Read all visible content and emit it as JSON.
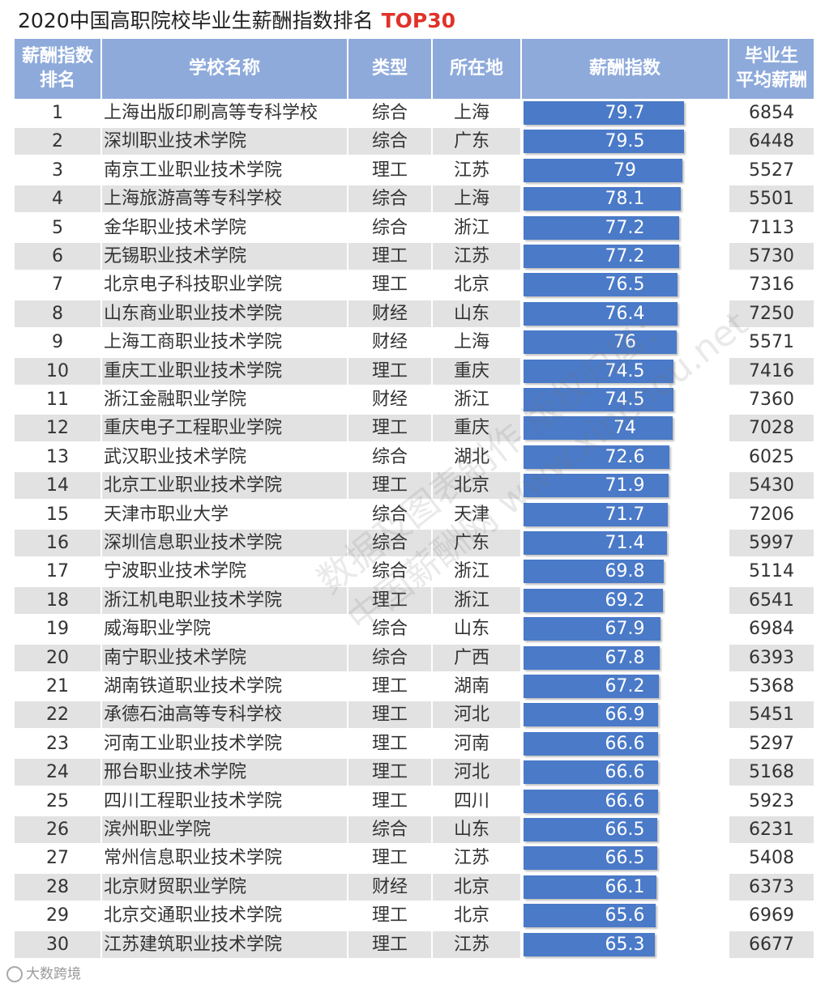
{
  "title": "2020中国高职院校毕业生薪酬指数排名",
  "title_highlight": "TOP30",
  "colors": {
    "header_bg": "#8eaadb",
    "header_text": "#ffffff",
    "bar": "#4a7ac8",
    "row_alt": "#e2e2e2",
    "highlight": "#e0322a"
  },
  "watermark": [
    "数据及图表制作 版权归属：",
    "中国薪酬网 www.xinchou.net"
  ],
  "footer_logo": "大数跨境",
  "chart_data": {
    "type": "table",
    "title": "2020中国高职院校毕业生薪酬指数排名 TOP30",
    "columns": [
      "薪酬指数\n排名",
      "学校名称",
      "类型",
      "所在地",
      "薪酬指数",
      "毕业生\n平均薪酬"
    ],
    "index_range": [
      0,
      79.7
    ],
    "rows": [
      {
        "rank": 1,
        "name": "上海出版印刷高等专科学校",
        "type": "综合",
        "location": "上海",
        "index": 79.7,
        "salary": 6854
      },
      {
        "rank": 2,
        "name": "深圳职业技术学院",
        "type": "综合",
        "location": "广东",
        "index": 79.5,
        "salary": 6448
      },
      {
        "rank": 3,
        "name": "南京工业职业技术学院",
        "type": "理工",
        "location": "江苏",
        "index": 79,
        "salary": 5527
      },
      {
        "rank": 4,
        "name": "上海旅游高等专科学校",
        "type": "综合",
        "location": "上海",
        "index": 78.1,
        "salary": 5501
      },
      {
        "rank": 5,
        "name": "金华职业技术学院",
        "type": "综合",
        "location": "浙江",
        "index": 77.2,
        "salary": 7113
      },
      {
        "rank": 6,
        "name": "无锡职业技术学院",
        "type": "理工",
        "location": "江苏",
        "index": 77.2,
        "salary": 5730
      },
      {
        "rank": 7,
        "name": "北京电子科技职业学院",
        "type": "理工",
        "location": "北京",
        "index": 76.5,
        "salary": 7316
      },
      {
        "rank": 8,
        "name": "山东商业职业技术学院",
        "type": "财经",
        "location": "山东",
        "index": 76.4,
        "salary": 7250
      },
      {
        "rank": 9,
        "name": "上海工商职业技术学院",
        "type": "财经",
        "location": "上海",
        "index": 76,
        "salary": 5571
      },
      {
        "rank": 10,
        "name": "重庆工业职业技术学院",
        "type": "理工",
        "location": "重庆",
        "index": 74.5,
        "salary": 7416
      },
      {
        "rank": 11,
        "name": "浙江金融职业学院",
        "type": "财经",
        "location": "浙江",
        "index": 74.5,
        "salary": 7360
      },
      {
        "rank": 12,
        "name": "重庆电子工程职业学院",
        "type": "理工",
        "location": "重庆",
        "index": 74,
        "salary": 7028
      },
      {
        "rank": 13,
        "name": "武汉职业技术学院",
        "type": "综合",
        "location": "湖北",
        "index": 72.6,
        "salary": 6025
      },
      {
        "rank": 14,
        "name": "北京工业职业技术学院",
        "type": "理工",
        "location": "北京",
        "index": 71.9,
        "salary": 5430
      },
      {
        "rank": 15,
        "name": "天津市职业大学",
        "type": "综合",
        "location": "天津",
        "index": 71.7,
        "salary": 7206
      },
      {
        "rank": 16,
        "name": "深圳信息职业技术学院",
        "type": "综合",
        "location": "广东",
        "index": 71.4,
        "salary": 5997
      },
      {
        "rank": 17,
        "name": "宁波职业技术学院",
        "type": "综合",
        "location": "浙江",
        "index": 69.8,
        "salary": 5114
      },
      {
        "rank": 18,
        "name": "浙江机电职业技术学院",
        "type": "理工",
        "location": "浙江",
        "index": 69.2,
        "salary": 6541
      },
      {
        "rank": 19,
        "name": "威海职业学院",
        "type": "综合",
        "location": "山东",
        "index": 67.9,
        "salary": 6984
      },
      {
        "rank": 20,
        "name": "南宁职业技术学院",
        "type": "综合",
        "location": "广西",
        "index": 67.8,
        "salary": 6393
      },
      {
        "rank": 21,
        "name": "湖南铁道职业技术学院",
        "type": "理工",
        "location": "湖南",
        "index": 67.2,
        "salary": 5368
      },
      {
        "rank": 22,
        "name": "承德石油高等专科学校",
        "type": "理工",
        "location": "河北",
        "index": 66.9,
        "salary": 5451
      },
      {
        "rank": 23,
        "name": "河南工业职业技术学院",
        "type": "理工",
        "location": "河南",
        "index": 66.6,
        "salary": 5297
      },
      {
        "rank": 24,
        "name": "邢台职业技术学院",
        "type": "理工",
        "location": "河北",
        "index": 66.6,
        "salary": 5168
      },
      {
        "rank": 25,
        "name": "四川工程职业技术学院",
        "type": "理工",
        "location": "四川",
        "index": 66.6,
        "salary": 5923
      },
      {
        "rank": 26,
        "name": "滨州职业学院",
        "type": "综合",
        "location": "山东",
        "index": 66.5,
        "salary": 6231
      },
      {
        "rank": 27,
        "name": "常州信息职业技术学院",
        "type": "理工",
        "location": "江苏",
        "index": 66.5,
        "salary": 5408
      },
      {
        "rank": 28,
        "name": "北京财贸职业学院",
        "type": "财经",
        "location": "北京",
        "index": 66.1,
        "salary": 6373
      },
      {
        "rank": 29,
        "name": "北京交通职业技术学院",
        "type": "理工",
        "location": "北京",
        "index": 65.6,
        "salary": 6969
      },
      {
        "rank": 30,
        "name": "江苏建筑职业技术学院",
        "type": "理工",
        "location": "江苏",
        "index": 65.3,
        "salary": 6677
      }
    ]
  }
}
